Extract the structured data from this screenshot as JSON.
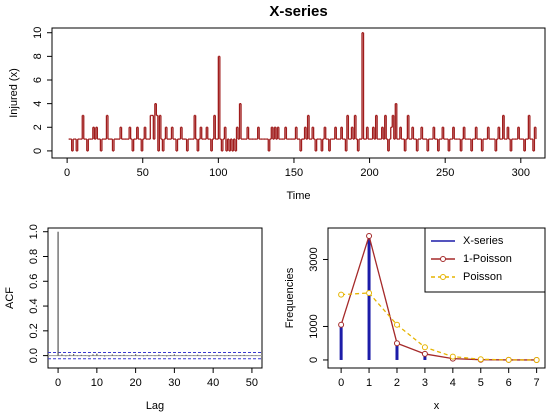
{
  "chart_data": [
    {
      "type": "step",
      "title": "X-series",
      "xlabel": "Time",
      "ylabel": "Injured (x)",
      "color": "#a01c1c",
      "x": [
        1,
        2,
        3,
        4,
        5,
        6,
        7,
        8,
        9,
        10,
        11,
        12,
        13,
        14,
        15,
        16,
        17,
        18,
        19,
        20,
        21,
        22,
        23,
        24,
        25,
        26,
        27,
        28,
        29,
        30,
        31,
        32,
        33,
        34,
        35,
        36,
        37,
        38,
        39,
        40,
        41,
        42,
        43,
        44,
        45,
        46,
        47,
        48,
        49,
        50,
        51,
        52,
        53,
        54,
        55,
        56,
        57,
        58,
        59,
        60,
        61,
        62,
        63,
        64,
        65,
        66,
        67,
        68,
        69,
        70,
        71,
        72,
        73,
        74,
        75,
        76,
        77,
        78,
        79,
        80,
        81,
        82,
        83,
        84,
        85,
        86,
        87,
        88,
        89,
        90,
        91,
        92,
        93,
        94,
        95,
        96,
        97,
        98,
        99,
        100,
        101,
        102,
        103,
        104,
        105,
        106,
        107,
        108,
        109,
        110,
        111,
        112,
        113,
        114,
        115,
        116,
        117,
        118,
        119,
        120,
        121,
        122,
        123,
        124,
        125,
        126,
        127,
        128,
        129,
        130,
        131,
        132,
        133,
        134,
        135,
        136,
        137,
        138,
        139,
        140,
        141,
        142,
        143,
        144,
        145,
        146,
        147,
        148,
        149,
        150,
        151,
        152,
        153,
        154,
        155,
        156,
        157,
        158,
        159,
        160,
        161,
        162,
        163,
        164,
        165,
        166,
        167,
        168,
        169,
        170,
        171,
        172,
        173,
        174,
        175,
        176,
        177,
        178,
        179,
        180,
        181,
        182,
        183,
        184,
        185,
        186,
        187,
        188,
        189,
        190,
        191,
        192,
        193,
        194,
        195,
        196,
        197,
        198,
        199,
        200,
        201,
        202,
        203,
        204,
        205,
        206,
        207,
        208,
        209,
        210,
        211,
        212,
        213,
        214,
        215,
        216,
        217,
        218,
        219,
        220,
        221,
        222,
        223,
        224,
        225,
        226,
        227,
        228,
        229,
        230,
        231,
        232,
        233,
        234,
        235,
        236,
        237,
        238,
        239,
        240,
        241,
        242,
        243,
        244,
        245,
        246,
        247,
        248,
        249,
        250,
        251,
        252,
        253,
        254,
        255,
        256,
        257,
        258,
        259,
        260,
        261,
        262,
        263,
        264,
        265,
        266,
        267,
        268,
        269,
        270,
        271,
        272,
        273,
        274,
        275,
        276,
        277,
        278,
        279,
        280,
        281,
        282,
        283,
        284,
        285,
        286,
        287,
        288,
        289,
        290,
        291,
        292,
        293,
        294,
        295,
        296,
        297,
        298,
        299,
        300,
        301,
        302,
        303,
        304,
        305,
        306,
        307,
        308,
        309,
        310
      ],
      "values": [
        1,
        1,
        0,
        1,
        1,
        0,
        1,
        1,
        1,
        3,
        1,
        1,
        0,
        1,
        1,
        1,
        2,
        1,
        2,
        1,
        1,
        0,
        1,
        1,
        1,
        3,
        1,
        1,
        1,
        0,
        1,
        1,
        1,
        1,
        2,
        1,
        1,
        1,
        1,
        1,
        2,
        1,
        0,
        1,
        1,
        2,
        1,
        1,
        0,
        1,
        2,
        1,
        1,
        1,
        3,
        3,
        1,
        4,
        3,
        0,
        3,
        1,
        0,
        1,
        2,
        1,
        1,
        1,
        2,
        1,
        1,
        0,
        1,
        1,
        2,
        1,
        1,
        1,
        0,
        1,
        1,
        1,
        1,
        3,
        1,
        0,
        1,
        2,
        1,
        1,
        1,
        2,
        1,
        1,
        0,
        1,
        3,
        1,
        1,
        8,
        1,
        0,
        1,
        2,
        0,
        1,
        0,
        1,
        0,
        1,
        0,
        2,
        1,
        4,
        1,
        1,
        1,
        1,
        2,
        1,
        1,
        1,
        1,
        1,
        1,
        2,
        1,
        1,
        1,
        1,
        1,
        1,
        0,
        1,
        2,
        1,
        2,
        1,
        2,
        1,
        1,
        1,
        1,
        2,
        1,
        1,
        1,
        1,
        1,
        1,
        2,
        1,
        1,
        0,
        1,
        1,
        2,
        1,
        3,
        1,
        1,
        2,
        1,
        0,
        1,
        1,
        1,
        0,
        1,
        2,
        1,
        1,
        0,
        1,
        1,
        1,
        2,
        1,
        1,
        1,
        2,
        1,
        1,
        0,
        3,
        1,
        1,
        2,
        1,
        3,
        1,
        0,
        1,
        1,
        10,
        1,
        1,
        2,
        1,
        1,
        1,
        2,
        1,
        3,
        1,
        1,
        1,
        2,
        1,
        3,
        1,
        0,
        1,
        2,
        3,
        1,
        4,
        1,
        1,
        2,
        1,
        1,
        0,
        1,
        3,
        1,
        1,
        2,
        1,
        1,
        0,
        1,
        1,
        2,
        1,
        1,
        1,
        0,
        1,
        1,
        1,
        2,
        1,
        1,
        0,
        1,
        1,
        2,
        1,
        1,
        1,
        0,
        1,
        1,
        2,
        1,
        1,
        1,
        1,
        0,
        1,
        2,
        1,
        1,
        1,
        1,
        0,
        1,
        1,
        2,
        1,
        1,
        1,
        0,
        1,
        1,
        1,
        2,
        1,
        1,
        1,
        1,
        0,
        1,
        2,
        1,
        1,
        3,
        1,
        1,
        2,
        1,
        0,
        1,
        1,
        1,
        1,
        2,
        1,
        1,
        1,
        0,
        1,
        1,
        3,
        1,
        1,
        0,
        2,
        1
      ],
      "xlim": [
        -10,
        316
      ],
      "ylim": [
        -0.6,
        10.4
      ],
      "xticks": [
        0,
        50,
        100,
        150,
        200,
        250,
        300
      ],
      "yticks": [
        0,
        2,
        4,
        6,
        8,
        10
      ]
    },
    {
      "type": "acf",
      "xlabel": "Lag",
      "ylabel": "ACF",
      "color": "#555555",
      "band_color": "#3b3bd0",
      "conf_limits": [
        -0.025,
        0.025
      ],
      "x": [
        0,
        1,
        2,
        3,
        4,
        5,
        6,
        7,
        8,
        9,
        10,
        11,
        12,
        13,
        14,
        15,
        16,
        17,
        18,
        19,
        20,
        21,
        22,
        23,
        24,
        25,
        26,
        27,
        28,
        29,
        30,
        31,
        32,
        33,
        34,
        35,
        36,
        37,
        38,
        39,
        40,
        41,
        42,
        43,
        44,
        45,
        46,
        47,
        48,
        49,
        50,
        51,
        52
      ],
      "values": [
        1,
        0.01,
        -0.005,
        0.008,
        0.012,
        -0.004,
        0.006,
        0.003,
        -0.008,
        0.01,
        0.015,
        0.004,
        -0.006,
        0.002,
        0.009,
        -0.003,
        0.005,
        0.007,
        -0.002,
        0.004,
        0.011,
        0.003,
        -0.005,
        0.006,
        0.002,
        -0.004,
        0.008,
        0.003,
        -0.006,
        0.005,
        0.01,
        -0.002,
        0.004,
        0.006,
        -0.003,
        0.002,
        0.007,
        -0.005,
        0.003,
        0.004,
        -0.002,
        0.006,
        0.003,
        -0.004,
        0.005,
        0.002,
        -0.003,
        0.004,
        0.006,
        -0.002,
        0.003,
        0.002,
        -0.001
      ],
      "xlim": [
        -2.6,
        52.6
      ],
      "ylim": [
        -0.1,
        1.03
      ],
      "xticks": [
        0,
        10,
        20,
        30,
        40,
        50
      ],
      "yticks": [
        {
          "value": 0,
          "label": "0.0"
        },
        {
          "value": 0.2,
          "label": "0.2"
        },
        {
          "value": 0.4,
          "label": "0.4"
        },
        {
          "value": 0.6,
          "label": "0.6"
        },
        {
          "value": 0.8,
          "label": "0.8"
        },
        {
          "value": 1,
          "label": "1.0"
        }
      ]
    },
    {
      "type": "line",
      "xlabel": "x",
      "ylabel": "Frequencies",
      "legend": "topright",
      "x": [
        0,
        1,
        2,
        3,
        4,
        5,
        6,
        7
      ],
      "series": [
        {
          "name": "X-series",
          "color": "#1c1ca8",
          "draw": "spikes",
          "values": [
            1050,
            3700,
            500,
            180,
            40,
            8,
            1,
            0
          ]
        },
        {
          "name": "1-Poisson",
          "color": "#a52a2a",
          "draw": "line",
          "marker": "circle",
          "dash": false,
          "values": [
            1050,
            3700,
            500,
            180,
            40,
            8,
            1,
            0
          ]
        },
        {
          "name": "Poisson",
          "color": "#e6b400",
          "draw": "line",
          "marker": "circle",
          "dash": true,
          "values": [
            1950,
            2000,
            1050,
            380,
            100,
            20,
            3,
            0
          ]
        }
      ],
      "xlim": [
        -0.47,
        7.3
      ],
      "ylim": [
        -240,
        3940
      ],
      "xticks": [
        0,
        1,
        2,
        3,
        4,
        5,
        6,
        7
      ],
      "yticks": [
        0,
        1000,
        3000
      ]
    }
  ]
}
